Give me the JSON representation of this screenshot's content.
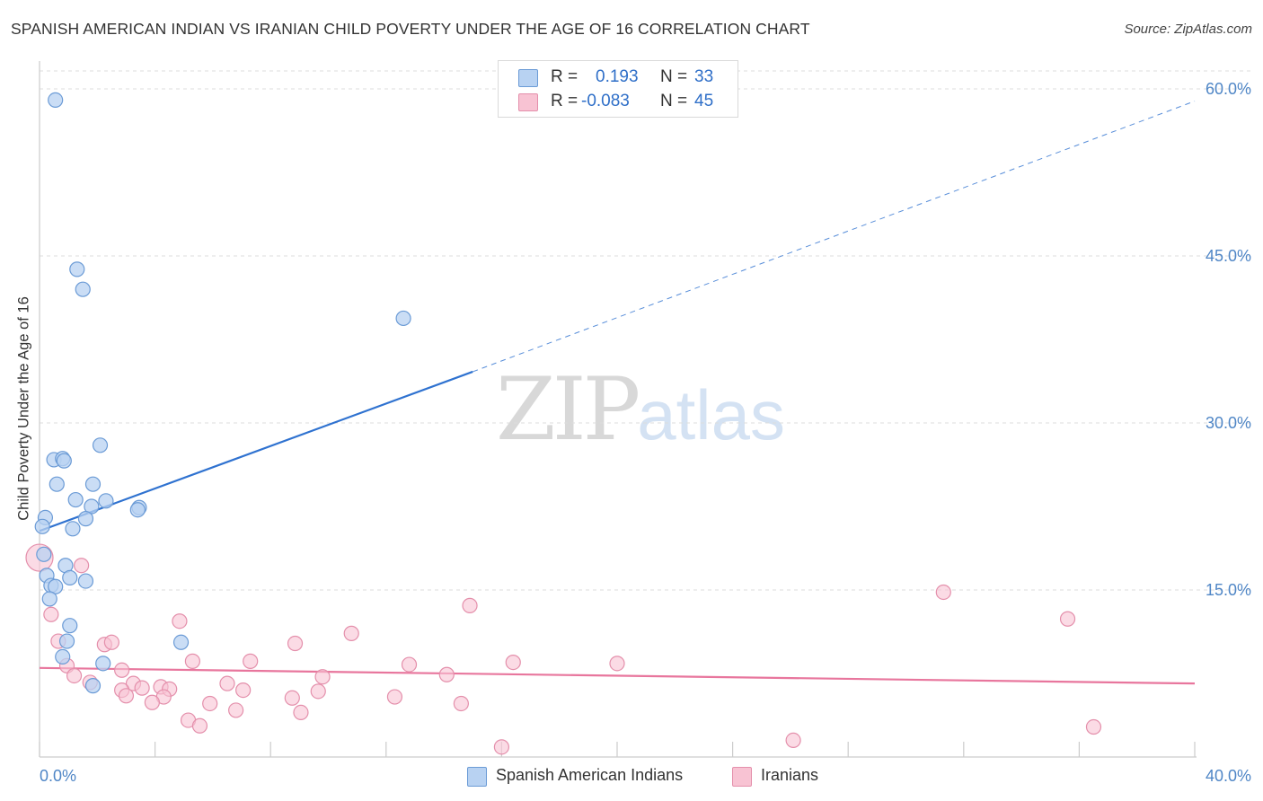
{
  "header": {
    "title": "SPANISH AMERICAN INDIAN VS IRANIAN CHILD POVERTY UNDER THE AGE OF 16 CORRELATION CHART",
    "source": "Source: ZipAtlas.com"
  },
  "watermark": {
    "zip": "ZIP",
    "atlas": "atlas"
  },
  "legend": {
    "series1": {
      "r_label": "R =",
      "r_value": "0.193",
      "n_label": "N =",
      "n_value": "33"
    },
    "series2": {
      "r_label": "R =",
      "r_value": "-0.083",
      "n_label": "N =",
      "n_value": "45"
    }
  },
  "bottom_legend": {
    "series1": "Spanish American Indians",
    "series2": "Iranians"
  },
  "colors": {
    "blue_fill": "#b8d2f2",
    "blue_stroke": "#6b9bd6",
    "blue_line": "#2f72d0",
    "pink_fill": "#f8c3d3",
    "pink_stroke": "#e48fab",
    "pink_line": "#e8769d",
    "grid": "#dddddd",
    "axis_text": "#4f86c6"
  },
  "chart_data": {
    "type": "scatter",
    "title": "SPANISH AMERICAN INDIAN VS IRANIAN CHILD POVERTY UNDER THE AGE OF 16 CORRELATION CHART",
    "xlabel": "",
    "ylabel": "Child Poverty Under the Age of 16",
    "xlim": [
      0,
      40
    ],
    "ylim": [
      0,
      60
    ],
    "x_tick_labels": [
      "0.0%",
      "40.0%"
    ],
    "y_ticks": [
      15,
      30,
      45,
      60
    ],
    "y_tick_labels": [
      "15.0%",
      "30.0%",
      "45.0%",
      "60.0%"
    ],
    "grid": true,
    "series": [
      {
        "name": "Spanish American Indians",
        "r": 0.193,
        "n": 33,
        "trend": {
          "x_start": 0,
          "y_start": 20.3,
          "x_end_solid": 15,
          "y_end_solid": 34.6,
          "x_end": 40,
          "y_end": 58.9
        },
        "points": [
          {
            "x": 0.55,
            "y": 59.0
          },
          {
            "x": 1.3,
            "y": 43.8
          },
          {
            "x": 1.5,
            "y": 42.0
          },
          {
            "x": 12.6,
            "y": 39.4
          },
          {
            "x": 2.1,
            "y": 28.0
          },
          {
            "x": 0.5,
            "y": 26.7
          },
          {
            "x": 0.8,
            "y": 26.8
          },
          {
            "x": 0.85,
            "y": 26.6
          },
          {
            "x": 0.6,
            "y": 24.5
          },
          {
            "x": 1.85,
            "y": 24.5
          },
          {
            "x": 1.25,
            "y": 23.1
          },
          {
            "x": 2.3,
            "y": 23.0
          },
          {
            "x": 1.8,
            "y": 22.5
          },
          {
            "x": 3.45,
            "y": 22.4
          },
          {
            "x": 3.4,
            "y": 22.2
          },
          {
            "x": 1.6,
            "y": 21.4
          },
          {
            "x": 0.2,
            "y": 21.5
          },
          {
            "x": 0.1,
            "y": 20.7
          },
          {
            "x": 1.15,
            "y": 20.5
          },
          {
            "x": 0.15,
            "y": 18.2
          },
          {
            "x": 0.9,
            "y": 17.2
          },
          {
            "x": 0.25,
            "y": 16.3
          },
          {
            "x": 1.05,
            "y": 16.1
          },
          {
            "x": 1.6,
            "y": 15.8
          },
          {
            "x": 0.4,
            "y": 15.4
          },
          {
            "x": 0.55,
            "y": 15.3
          },
          {
            "x": 0.35,
            "y": 14.2
          },
          {
            "x": 1.05,
            "y": 11.8
          },
          {
            "x": 0.95,
            "y": 10.4
          },
          {
            "x": 4.9,
            "y": 10.3
          },
          {
            "x": 0.8,
            "y": 9.0
          },
          {
            "x": 2.2,
            "y": 8.4
          },
          {
            "x": 1.85,
            "y": 6.4
          }
        ]
      },
      {
        "name": "Iranians",
        "r": -0.083,
        "n": 45,
        "trend": {
          "x_start": 0,
          "y_start": 8.0,
          "x_end": 40,
          "y_end": 6.6
        },
        "points": [
          {
            "x": 0.0,
            "y": 17.9,
            "big": true
          },
          {
            "x": 0.4,
            "y": 12.8
          },
          {
            "x": 1.45,
            "y": 17.2
          },
          {
            "x": 14.9,
            "y": 13.6
          },
          {
            "x": 31.3,
            "y": 14.8
          },
          {
            "x": 35.6,
            "y": 12.4
          },
          {
            "x": 4.85,
            "y": 12.2
          },
          {
            "x": 10.8,
            "y": 11.1
          },
          {
            "x": 0.65,
            "y": 10.4
          },
          {
            "x": 2.25,
            "y": 10.1
          },
          {
            "x": 2.5,
            "y": 10.3
          },
          {
            "x": 8.85,
            "y": 10.2
          },
          {
            "x": 5.3,
            "y": 8.6
          },
          {
            "x": 7.3,
            "y": 8.6
          },
          {
            "x": 16.4,
            "y": 8.5
          },
          {
            "x": 20.0,
            "y": 8.4
          },
          {
            "x": 12.8,
            "y": 8.3
          },
          {
            "x": 0.95,
            "y": 8.2
          },
          {
            "x": 1.2,
            "y": 7.3
          },
          {
            "x": 2.85,
            "y": 7.8
          },
          {
            "x": 14.1,
            "y": 7.4
          },
          {
            "x": 9.8,
            "y": 7.2
          },
          {
            "x": 1.75,
            "y": 6.7
          },
          {
            "x": 3.25,
            "y": 6.6
          },
          {
            "x": 3.55,
            "y": 6.2
          },
          {
            "x": 6.5,
            "y": 6.6
          },
          {
            "x": 2.85,
            "y": 6.0
          },
          {
            "x": 4.2,
            "y": 6.3
          },
          {
            "x": 4.5,
            "y": 6.1
          },
          {
            "x": 7.05,
            "y": 6.0
          },
          {
            "x": 9.65,
            "y": 5.9
          },
          {
            "x": 3.0,
            "y": 5.5
          },
          {
            "x": 4.3,
            "y": 5.4
          },
          {
            "x": 8.75,
            "y": 5.3
          },
          {
            "x": 12.3,
            "y": 5.4
          },
          {
            "x": 3.9,
            "y": 4.9
          },
          {
            "x": 5.9,
            "y": 4.8
          },
          {
            "x": 14.6,
            "y": 4.8
          },
          {
            "x": 6.8,
            "y": 4.2
          },
          {
            "x": 9.05,
            "y": 4.0
          },
          {
            "x": 5.15,
            "y": 3.3
          },
          {
            "x": 5.55,
            "y": 2.8
          },
          {
            "x": 36.5,
            "y": 2.7
          },
          {
            "x": 26.1,
            "y": 1.5
          },
          {
            "x": 16.0,
            "y": 0.9
          }
        ]
      }
    ]
  }
}
